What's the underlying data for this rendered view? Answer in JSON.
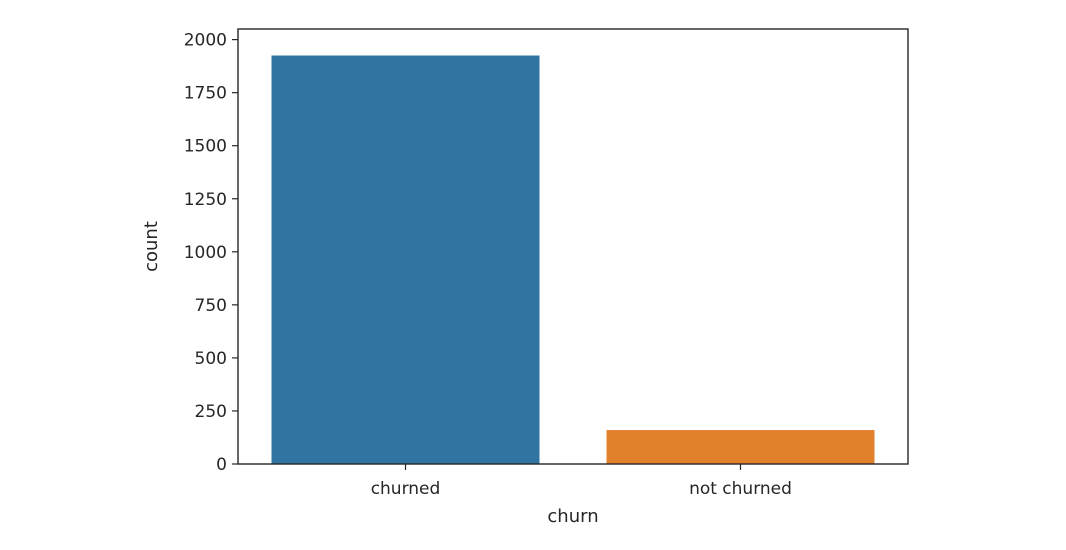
{
  "chart_data": {
    "type": "bar",
    "title": "",
    "xlabel": "churn",
    "ylabel": "count",
    "categories": [
      "churned",
      "not churned"
    ],
    "values": [
      1925,
      160
    ],
    "colors": [
      "#3274a1",
      "#e1812c"
    ],
    "ylim": [
      0,
      2050
    ],
    "yticks": [
      0,
      250,
      500,
      750,
      1000,
      1250,
      1500,
      1750,
      2000
    ],
    "ytick_labels": [
      "0",
      "250",
      "500",
      "750",
      "1000",
      "1250",
      "1500",
      "1750",
      "2000"
    ],
    "grid": false,
    "legend": "none"
  }
}
